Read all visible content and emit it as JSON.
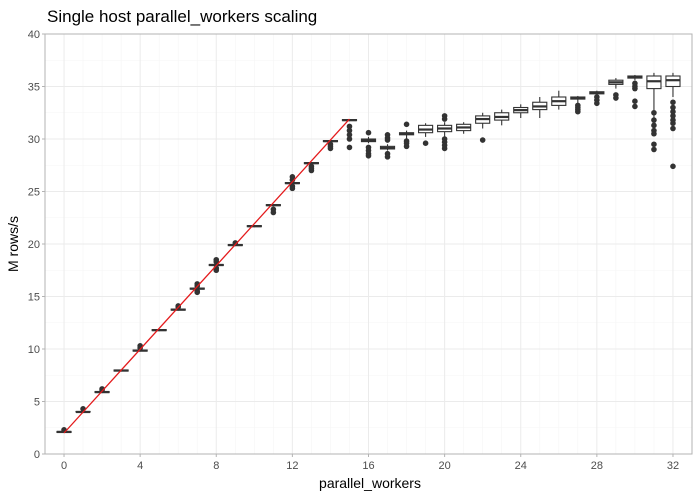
{
  "chart_data": {
    "type": "boxplot",
    "title": "Single host parallel_workers scaling",
    "xlabel": "parallel_workers",
    "ylabel": "M rows/s",
    "xlim": [
      -1,
      33
    ],
    "ylim": [
      0,
      40
    ],
    "x_ticks": [
      0,
      4,
      8,
      12,
      16,
      20,
      24,
      28,
      32
    ],
    "y_ticks": [
      0,
      5,
      10,
      15,
      20,
      25,
      30,
      35,
      40
    ],
    "grid": true,
    "colors": {
      "box": "#333333",
      "line": "#e41a1c",
      "grid_major": "#ebebeb",
      "grid_minor": "#f5f5f5",
      "panel_border": "#b3b3b3"
    },
    "boxes": [
      {
        "x": 0,
        "min": 2.0,
        "q1": 2.05,
        "median": 2.1,
        "q3": 2.15,
        "max": 2.2,
        "outliers": [
          2.3
        ]
      },
      {
        "x": 1,
        "min": 3.9,
        "q1": 4.0,
        "median": 4.0,
        "q3": 4.05,
        "max": 4.1,
        "outliers": [
          4.3
        ]
      },
      {
        "x": 2,
        "min": 5.8,
        "q1": 5.85,
        "median": 5.9,
        "q3": 5.95,
        "max": 6.0,
        "outliers": [
          6.2,
          6.1
        ]
      },
      {
        "x": 3,
        "min": 7.85,
        "q1": 7.9,
        "median": 7.95,
        "q3": 8.0,
        "max": 8.05,
        "outliers": []
      },
      {
        "x": 4,
        "min": 9.75,
        "q1": 9.8,
        "median": 9.85,
        "q3": 9.9,
        "max": 9.95,
        "outliers": [
          10.3,
          10.1
        ]
      },
      {
        "x": 5,
        "min": 11.7,
        "q1": 11.75,
        "median": 11.8,
        "q3": 11.85,
        "max": 11.9,
        "outliers": []
      },
      {
        "x": 6,
        "min": 13.65,
        "q1": 13.7,
        "median": 13.75,
        "q3": 13.8,
        "max": 13.85,
        "outliers": [
          14.1,
          14.0
        ]
      },
      {
        "x": 7,
        "min": 15.6,
        "q1": 15.7,
        "median": 15.75,
        "q3": 15.8,
        "max": 15.9,
        "outliers": [
          16.2,
          16.0,
          15.5,
          15.4
        ]
      },
      {
        "x": 8,
        "min": 17.9,
        "q1": 17.95,
        "median": 18.0,
        "q3": 18.05,
        "max": 18.1,
        "outliers": [
          18.5,
          18.3,
          17.7,
          17.5
        ]
      },
      {
        "x": 9,
        "min": 19.8,
        "q1": 19.85,
        "median": 19.9,
        "q3": 19.95,
        "max": 20.0,
        "outliers": [
          20.1
        ]
      },
      {
        "x": 10,
        "min": 21.6,
        "q1": 21.65,
        "median": 21.7,
        "q3": 21.75,
        "max": 21.8,
        "outliers": []
      },
      {
        "x": 11,
        "min": 23.6,
        "q1": 23.65,
        "median": 23.7,
        "q3": 23.75,
        "max": 23.8,
        "outliers": [
          23.3,
          23.0
        ]
      },
      {
        "x": 12,
        "min": 25.7,
        "q1": 25.75,
        "median": 25.8,
        "q3": 25.85,
        "max": 25.9,
        "outliers": [
          26.4,
          26.1,
          25.5,
          25.3
        ]
      },
      {
        "x": 13,
        "min": 27.6,
        "q1": 27.65,
        "median": 27.7,
        "q3": 27.75,
        "max": 27.8,
        "outliers": [
          27.4,
          27.2,
          27.0
        ]
      },
      {
        "x": 14,
        "min": 29.7,
        "q1": 29.75,
        "median": 29.8,
        "q3": 29.85,
        "max": 29.9,
        "outliers": [
          29.5,
          29.3,
          29.1
        ]
      },
      {
        "x": 15,
        "min": 31.7,
        "q1": 31.75,
        "median": 31.8,
        "q3": 31.85,
        "max": 31.9,
        "outliers": [
          31.2,
          30.8,
          30.4,
          30.0,
          29.2
        ]
      },
      {
        "x": 16,
        "min": 29.6,
        "q1": 29.75,
        "median": 29.85,
        "q3": 30.0,
        "max": 30.2,
        "outliers": [
          30.6,
          29.2,
          28.9,
          28.6,
          28.4
        ]
      },
      {
        "x": 17,
        "min": 28.9,
        "q1": 29.05,
        "median": 29.15,
        "q3": 29.3,
        "max": 29.5,
        "outliers": [
          30.4,
          30.1,
          29.9,
          28.6,
          28.3
        ]
      },
      {
        "x": 18,
        "min": 30.0,
        "q1": 30.4,
        "median": 30.5,
        "q3": 30.6,
        "max": 30.8,
        "outliers": [
          31.4,
          29.8,
          29.6,
          29.3
        ]
      },
      {
        "x": 19,
        "min": 30.2,
        "q1": 30.6,
        "median": 30.9,
        "q3": 31.3,
        "max": 31.5,
        "outliers": [
          29.6
        ]
      },
      {
        "x": 20,
        "min": 30.2,
        "q1": 30.7,
        "median": 31.0,
        "q3": 31.3,
        "max": 31.6,
        "outliers": [
          32.2,
          31.9,
          30.0,
          29.7,
          29.4,
          29.1
        ]
      },
      {
        "x": 21,
        "min": 30.5,
        "q1": 30.8,
        "median": 31.1,
        "q3": 31.4,
        "max": 31.6,
        "outliers": []
      },
      {
        "x": 22,
        "min": 31.0,
        "q1": 31.5,
        "median": 31.9,
        "q3": 32.2,
        "max": 32.5,
        "outliers": [
          29.9
        ]
      },
      {
        "x": 23,
        "min": 31.3,
        "q1": 31.8,
        "median": 32.1,
        "q3": 32.5,
        "max": 32.8,
        "outliers": []
      },
      {
        "x": 24,
        "min": 32.0,
        "q1": 32.5,
        "median": 32.75,
        "q3": 33.0,
        "max": 33.3,
        "outliers": []
      },
      {
        "x": 25,
        "min": 32.0,
        "q1": 32.8,
        "median": 33.1,
        "q3": 33.5,
        "max": 34.0,
        "outliers": []
      },
      {
        "x": 26,
        "min": 32.8,
        "q1": 33.2,
        "median": 33.6,
        "q3": 34.0,
        "max": 34.6,
        "outliers": []
      },
      {
        "x": 27,
        "min": 33.4,
        "q1": 33.8,
        "median": 33.9,
        "q3": 34.0,
        "max": 34.1,
        "outliers": [
          33.2,
          33.0,
          32.8,
          32.6
        ]
      },
      {
        "x": 28,
        "min": 34.0,
        "q1": 34.3,
        "median": 34.4,
        "q3": 34.5,
        "max": 34.6,
        "outliers": [
          34.0,
          33.7,
          33.4
        ]
      },
      {
        "x": 29,
        "min": 34.8,
        "q1": 35.2,
        "median": 35.4,
        "q3": 35.6,
        "max": 35.8,
        "outliers": [
          34.2,
          33.9
        ]
      },
      {
        "x": 30,
        "min": 35.6,
        "q1": 35.8,
        "median": 35.9,
        "q3": 36.0,
        "max": 36.1,
        "outliers": [
          35.3,
          35.0,
          34.8,
          33.6,
          33.1
        ]
      },
      {
        "x": 31,
        "min": 32.0,
        "q1": 34.8,
        "median": 35.5,
        "q3": 36.0,
        "max": 36.3,
        "outliers": [
          32.5,
          31.8,
          31.3,
          30.8,
          30.5,
          29.5,
          29.0
        ]
      },
      {
        "x": 32,
        "min": 34.0,
        "q1": 35.0,
        "median": 35.6,
        "q3": 36.0,
        "max": 36.3,
        "outliers": [
          33.5,
          33.0,
          32.6,
          32.2,
          31.8,
          31.5,
          31.0,
          27.4
        ]
      }
    ],
    "line": {
      "x": [
        0,
        15
      ],
      "y": [
        2.0,
        31.9
      ]
    }
  }
}
